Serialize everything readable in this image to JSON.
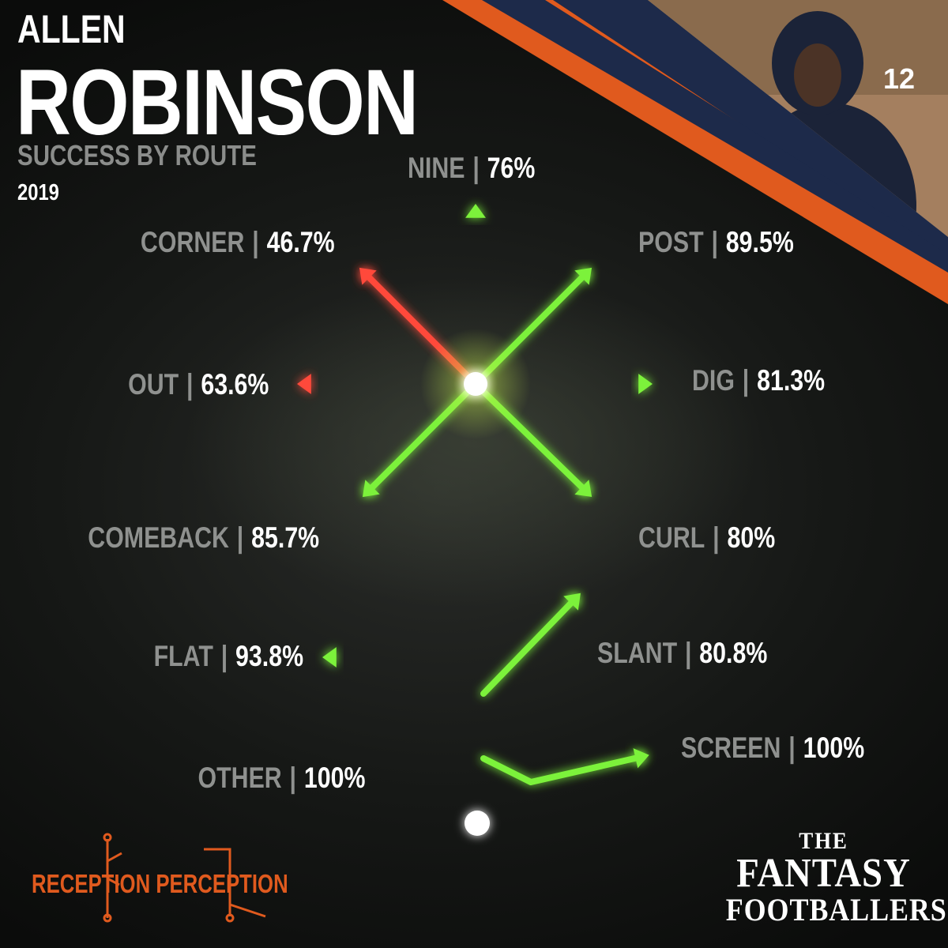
{
  "header": {
    "first_name": "ALLEN",
    "last_name": "ROBINSON",
    "subtitle": "SUCCESS BY ROUTE",
    "year": "2019"
  },
  "chart_data": {
    "type": "route-tree",
    "title": "SUCCESS BY ROUTE",
    "routes": [
      {
        "name": "NINE",
        "value": "76%",
        "pct": 76
      },
      {
        "name": "CORNER",
        "value": "46.7%",
        "pct": 46.7
      },
      {
        "name": "POST",
        "value": "89.5%",
        "pct": 89.5
      },
      {
        "name": "OUT",
        "value": "63.6%",
        "pct": 63.6
      },
      {
        "name": "DIG",
        "value": "81.3%",
        "pct": 81.3
      },
      {
        "name": "COMEBACK",
        "value": "85.7%",
        "pct": 85.7
      },
      {
        "name": "CURL",
        "value": "80%",
        "pct": 80
      },
      {
        "name": "FLAT",
        "value": "93.8%",
        "pct": 93.8
      },
      {
        "name": "SLANT",
        "value": "80.8%",
        "pct": 80.8
      },
      {
        "name": "OTHER",
        "value": "100%",
        "pct": 100
      },
      {
        "name": "SCREEN",
        "value": "100%",
        "pct": 100
      }
    ],
    "colors": {
      "high": "#7cf23a",
      "low": "#ff4a3a",
      "stem": "#ffffff",
      "accent": "#e05a1e",
      "navy": "#1d2a4a"
    }
  },
  "logos": {
    "left": "RECEPTION PERCEPTION",
    "right_line1": "THE",
    "right_line2": "FANTASY",
    "right_line3": "FOOTBALLERS"
  },
  "photo": {
    "jersey_number": "12",
    "icon": "player-photo-icon"
  }
}
